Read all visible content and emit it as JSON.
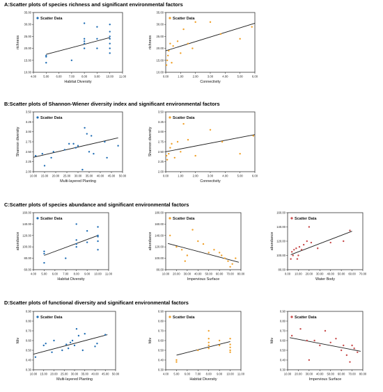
{
  "colors": {
    "blue": "#1f6db4",
    "orange": "#f0a028",
    "red": "#c74a4a",
    "line": "#1a1a1a"
  },
  "sections": [
    {
      "id": "A",
      "title": "A:Scatter plots of species richness and significant environmental factors"
    },
    {
      "id": "B",
      "title": "B:Scatter plots of Shannon-Wiener diversity index and significant environmental factors"
    },
    {
      "id": "C",
      "title": "C:Scatter plots of species abundance and significant environmental factors"
    },
    {
      "id": "D",
      "title": "D:Scatter plots of functional diversity and significant environmental factors"
    }
  ],
  "chart_data": [
    {
      "id": "A1",
      "type": "scatter",
      "legend": "Scatter Data",
      "color": "#1f6db4",
      "xlabel": "Habitat Diversity",
      "ylabel": "richness",
      "xlim": [
        4,
        11
      ],
      "ylim": [
        10,
        35
      ],
      "xticks": [
        "4.00",
        "5.00",
        "6.00",
        "7.00",
        "8.00",
        "9.00",
        "10.00",
        "11.00"
      ],
      "yticks": [
        "10.00",
        "15.00",
        "20.00",
        "25.00",
        "30.00",
        "35.00"
      ],
      "x": [
        5,
        5,
        5,
        7,
        8,
        8,
        8,
        8,
        8,
        9,
        9,
        9,
        10,
        10,
        10,
        10,
        10,
        10,
        10
      ],
      "y": [
        14,
        17,
        16.5,
        15,
        22,
        23,
        24,
        20,
        30.5,
        29,
        24,
        20,
        30,
        27,
        25,
        24,
        22,
        20,
        18
      ],
      "fit": [
        [
          5,
          17.5
        ],
        [
          10,
          24.5
        ]
      ]
    },
    {
      "id": "A2",
      "type": "scatter",
      "legend": "Scatter Data",
      "color": "#f0a028",
      "xlabel": "Connectivity",
      "ylabel": "richness",
      "xlim": [
        0,
        6
      ],
      "ylim": [
        10,
        35
      ],
      "xticks": [
        "0.00",
        "1.00",
        "2.00",
        "3.00",
        "4.00",
        "5.00",
        "6.00"
      ],
      "yticks": [
        "10.00",
        "15.00",
        "20.00",
        "25.00",
        "30.00",
        "35.00"
      ],
      "x": [
        0.05,
        0.1,
        0.15,
        0.2,
        0.3,
        0.4,
        0.5,
        0.8,
        1.0,
        1.2,
        1.5,
        1.8,
        2.0,
        3.0,
        3.7,
        5.0,
        5.8
      ],
      "y": [
        13,
        15,
        17,
        19,
        22,
        14,
        21,
        23,
        18,
        28,
        22,
        20,
        31,
        31,
        26,
        24,
        29
      ],
      "fit": [
        [
          0,
          19
        ],
        [
          6,
          30.5
        ]
      ]
    },
    {
      "id": "B1",
      "type": "scatter",
      "legend": "Scatter Data",
      "color": "#1f6db4",
      "xlabel": "Multi-layered Planting",
      "ylabel": "Shannon diversity",
      "xlim": [
        10,
        50
      ],
      "ylim": [
        2.0,
        3.5
      ],
      "xticks": [
        "10.00",
        "15.00",
        "20.00",
        "25.00",
        "30.00",
        "35.00",
        "40.00",
        "45.00",
        "50.00"
      ],
      "yticks": [
        "2.00",
        "2.25",
        "2.50",
        "2.75",
        "3.00",
        "3.25",
        "3.50"
      ],
      "x": [
        11,
        14,
        15,
        18,
        19,
        24,
        26,
        28,
        29,
        30,
        32,
        33,
        34,
        35,
        36,
        37,
        42,
        43,
        48
      ],
      "y": [
        2.4,
        2.45,
        2.15,
        2.35,
        2.5,
        2.55,
        2.7,
        2.7,
        2.6,
        2.65,
        2.05,
        3.1,
        2.95,
        2.5,
        2.9,
        2.45,
        2.75,
        2.35,
        2.65
      ],
      "fit": [
        [
          10,
          2.36
        ],
        [
          48,
          2.85
        ]
      ]
    },
    {
      "id": "B2",
      "type": "scatter",
      "legend": "Scatter Data",
      "color": "#f0a028",
      "xlabel": "Connectivity",
      "ylabel": "Shannon diversity",
      "xlim": [
        0,
        6
      ],
      "ylim": [
        2.0,
        3.5
      ],
      "xticks": [
        "0.00",
        "1.00",
        "2.00",
        "3.00",
        "4.00",
        "5.00",
        "6.00"
      ],
      "yticks": [
        "2.00",
        "2.25",
        "2.50",
        "2.75",
        "3.00",
        "3.25",
        "3.50"
      ],
      "x": [
        0.05,
        0.1,
        0.2,
        0.3,
        0.4,
        0.6,
        0.8,
        1.0,
        1.2,
        1.5,
        2.0,
        3.0,
        3.8,
        5.0,
        5.9
      ],
      "y": [
        2.4,
        2.3,
        2.45,
        2.6,
        2.7,
        2.35,
        2.75,
        2.5,
        3.2,
        2.8,
        2.4,
        3.05,
        2.75,
        2.45,
        2.9
      ],
      "fit": [
        [
          0,
          2.5
        ],
        [
          6,
          2.93
        ]
      ]
    },
    {
      "id": "C1",
      "type": "scatter",
      "legend": "Scatter Data",
      "color": "#1f6db4",
      "xlabel": "Habitat Diversity",
      "ylabel": "abundance",
      "xlim": [
        4,
        11
      ],
      "ylim": [
        60,
        160
      ],
      "xticks": [
        "4.00",
        "5.00",
        "6.00",
        "7.00",
        "8.00",
        "9.00",
        "10.00",
        "11.00"
      ],
      "yticks": [
        "60.00",
        "80.00",
        "100.00",
        "120.00",
        "140.00",
        "160.00"
      ],
      "x": [
        5,
        5,
        5,
        7,
        8,
        8,
        8,
        8,
        9,
        9,
        10,
        10,
        10,
        10,
        10
      ],
      "y": [
        72,
        88,
        92,
        80,
        100,
        105,
        112,
        140,
        108,
        128,
        135,
        120,
        118,
        110,
        95
      ],
      "fit": [
        [
          5,
          85
        ],
        [
          10,
          120
        ]
      ]
    },
    {
      "id": "C2",
      "type": "scatter",
      "legend": "Scatter Data",
      "color": "#f0a028",
      "xlabel": "Impervious Surface",
      "ylabel": "abundance",
      "xlim": [
        10,
        80
      ],
      "ylim": [
        80,
        180
      ],
      "xticks": [
        "10.00",
        "20.00",
        "30.00",
        "40.00",
        "50.00",
        "60.00",
        "70.00",
        "80.00"
      ],
      "yticks": [
        "80.00",
        "100.00",
        "120.00",
        "140.00",
        "160.00",
        "180.00"
      ],
      "x": [
        14,
        20,
        25,
        28,
        30,
        35,
        40,
        45,
        50,
        55,
        60,
        62,
        65,
        68,
        70,
        72,
        75
      ],
      "y": [
        140,
        120,
        115,
        95,
        105,
        150,
        130,
        125,
        110,
        115,
        110,
        105,
        100,
        95,
        85,
        90,
        100
      ],
      "fit": [
        [
          12,
          126
        ],
        [
          78,
          93
        ]
      ]
    },
    {
      "id": "C3",
      "type": "scatter",
      "legend": "Scatter Data",
      "color": "#c74a4a",
      "xlabel": "Water Body",
      "ylabel": "abundance",
      "xlim": [
        0,
        70
      ],
      "ylim": [
        80,
        160
      ],
      "xticks": [
        "0.00",
        "10.00",
        "20.00",
        "30.00",
        "40.00",
        "50.00",
        "60.00",
        "70.00"
      ],
      "yticks": [
        "80.00",
        "100.00",
        "120.00",
        "140.00",
        "160.00"
      ],
      "x": [
        3,
        4,
        5,
        6,
        8,
        9,
        10,
        11,
        13,
        15,
        18,
        20,
        22,
        28,
        40,
        52,
        58
      ],
      "y": [
        95,
        105,
        100,
        108,
        110,
        95,
        100,
        112,
        108,
        115,
        120,
        140,
        118,
        110,
        118,
        120,
        135
      ],
      "fit": [
        [
          3,
          101
        ],
        [
          60,
          134
        ]
      ]
    },
    {
      "id": "D1",
      "type": "scatter",
      "legend": "Scatter Data",
      "color": "#1f6db4",
      "xlabel": "Multi-layered Planting",
      "ylabel": "fdiv",
      "xlim": [
        10,
        50
      ],
      "ylim": [
        0.3,
        0.9
      ],
      "xticks": [
        "10.00",
        "15.00",
        "20.00",
        "25.00",
        "30.00",
        "35.00",
        "40.00",
        "45.00",
        "50.00"
      ],
      "yticks": [
        "0.30",
        "0.40",
        "0.50",
        "0.60",
        "0.70",
        "0.80",
        "0.90"
      ],
      "x": [
        11,
        15,
        16,
        19,
        20,
        24,
        26,
        27,
        28,
        29,
        30,
        31,
        32,
        34,
        35,
        40,
        41,
        45
      ],
      "y": [
        0.43,
        0.55,
        0.57,
        0.48,
        0.6,
        0.5,
        0.56,
        0.52,
        0.58,
        0.6,
        0.55,
        0.72,
        0.65,
        0.5,
        0.67,
        0.54,
        0.57,
        0.66
      ],
      "fit": [
        [
          10,
          0.46
        ],
        [
          46,
          0.66
        ]
      ]
    },
    {
      "id": "D2",
      "type": "scatter",
      "legend": "Scatter Data",
      "color": "#f0a028",
      "xlabel": "Habitat Diversity",
      "ylabel": "fdiv",
      "xlim": [
        4,
        11
      ],
      "ylim": [
        0.3,
        0.9
      ],
      "xticks": [
        "4.00",
        "5.00",
        "6.00",
        "7.00",
        "8.00",
        "9.00",
        "10.00",
        "11.00"
      ],
      "yticks": [
        "0.30",
        "0.40",
        "0.50",
        "0.60",
        "0.70",
        "0.80",
        "0.90"
      ],
      "x": [
        5,
        5,
        7,
        8,
        8,
        8,
        8,
        8,
        9,
        9,
        10,
        10,
        10,
        10,
        10
      ],
      "y": [
        0.38,
        0.4,
        0.5,
        0.52,
        0.55,
        0.58,
        0.62,
        0.7,
        0.55,
        0.6,
        0.48,
        0.5,
        0.53,
        0.56,
        0.62
      ],
      "fit": [
        [
          5,
          0.45
        ],
        [
          10,
          0.59
        ]
      ]
    },
    {
      "id": "D3",
      "type": "scatter",
      "legend": "Scatter Data",
      "color": "#c74a4a",
      "xlabel": "Impervious Surface",
      "ylabel": "fdiv",
      "xlim": [
        10,
        80
      ],
      "ylim": [
        0.3,
        0.9
      ],
      "xticks": [
        "10.00",
        "20.00",
        "30.00",
        "40.00",
        "50.00",
        "60.00",
        "70.00",
        "80.00"
      ],
      "yticks": [
        "0.30",
        "0.40",
        "0.50",
        "0.60",
        "0.70",
        "0.80",
        "0.90"
      ],
      "x": [
        14,
        22,
        28,
        30,
        35,
        40,
        45,
        50,
        55,
        60,
        62,
        65,
        68,
        70,
        72,
        75
      ],
      "y": [
        0.65,
        0.72,
        0.6,
        0.4,
        0.6,
        0.55,
        0.7,
        0.58,
        0.62,
        0.5,
        0.55,
        0.45,
        0.38,
        0.55,
        0.52,
        0.48
      ],
      "fit": [
        [
          12,
          0.63
        ],
        [
          78,
          0.49
        ]
      ]
    }
  ]
}
